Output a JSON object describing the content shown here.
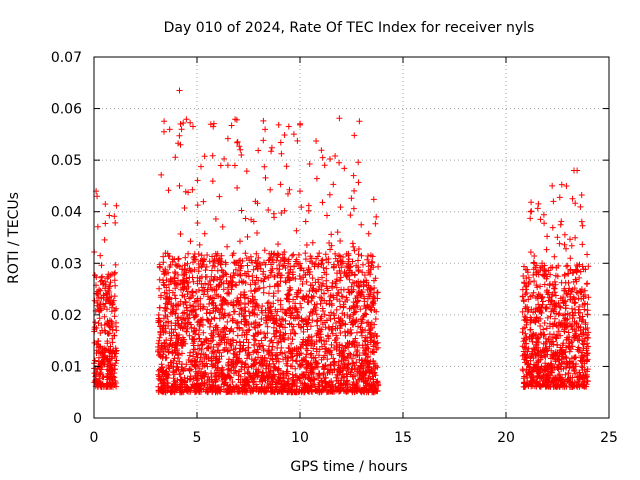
{
  "chart_data": {
    "type": "scatter",
    "title": "Day 010 of 2024, Rate Of TEC Index for receiver nyls",
    "xlabel": "GPS time / hours",
    "ylabel": "ROTI / TECUs",
    "xlim": [
      0,
      25
    ],
    "ylim": [
      0,
      0.07
    ],
    "x_ticks": [
      0,
      5,
      10,
      15,
      20,
      25
    ],
    "y_ticks": [
      0,
      0.01,
      0.02,
      0.03,
      0.04,
      0.05,
      0.06,
      0.07
    ],
    "x_tick_labels": [
      "0",
      "5",
      "10",
      "15",
      "20",
      "25"
    ],
    "y_tick_labels": [
      "0",
      "0.01",
      "0.02",
      "0.03",
      "0.04",
      "0.05",
      "0.06",
      "0.07"
    ],
    "grid": true,
    "marker": "+",
    "series_color": "#ff0000",
    "data_segments": [
      {
        "x_start": 0.0,
        "x_end": 1.1,
        "y_typical_min": 0.006,
        "y_typical_max": 0.028,
        "y_peak": 0.044
      },
      {
        "x_start": 3.1,
        "x_end": 13.8,
        "y_typical_min": 0.005,
        "y_typical_max": 0.032,
        "y_peak": 0.063
      },
      {
        "x_start": 20.8,
        "x_end": 24.0,
        "y_typical_min": 0.006,
        "y_typical_max": 0.03,
        "y_peak": 0.048
      }
    ],
    "notable_points": [
      {
        "x": 0.1,
        "y": 0.044
      },
      {
        "x": 0.15,
        "y": 0.043
      },
      {
        "x": 4.15,
        "y": 0.0635
      },
      {
        "x": 4.2,
        "y": 0.057
      },
      {
        "x": 4.25,
        "y": 0.056
      },
      {
        "x": 4.2,
        "y": 0.053
      },
      {
        "x": 4.15,
        "y": 0.045
      },
      {
        "x": 6.5,
        "y": 0.049
      },
      {
        "x": 7.1,
        "y": 0.052
      },
      {
        "x": 7.15,
        "y": 0.051
      },
      {
        "x": 10.0,
        "y": 0.044
      },
      {
        "x": 11.1,
        "y": 0.0505
      },
      {
        "x": 11.2,
        "y": 0.049
      },
      {
        "x": 11.9,
        "y": 0.0495
      },
      {
        "x": 12.6,
        "y": 0.047
      },
      {
        "x": 13.7,
        "y": 0.039
      },
      {
        "x": 23.3,
        "y": 0.048
      },
      {
        "x": 23.45,
        "y": 0.048
      },
      {
        "x": 22.3,
        "y": 0.042
      },
      {
        "x": 21.2,
        "y": 0.04
      }
    ]
  }
}
